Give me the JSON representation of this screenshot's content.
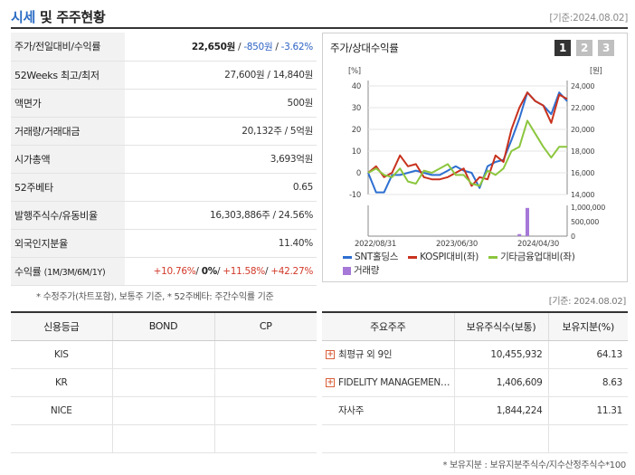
{
  "header": {
    "title_a": "시세",
    "title_b": " 및 주주현황",
    "date": "[기준:2024.08.02]"
  },
  "stock": {
    "rows": [
      {
        "label": "주가/전일대비/수익률",
        "price": "22,650원",
        "change": "-850원",
        "rate": "-3.62%"
      },
      {
        "label": "52Weeks 최고/최저",
        "value": "27,600원 / 14,840원"
      },
      {
        "label": "액면가",
        "value": "500원"
      },
      {
        "label": "거래량/거래대금",
        "value": "20,132주 / 5억원"
      },
      {
        "label": "시가총액",
        "value": "3,693억원"
      },
      {
        "label": "52주베타",
        "value": "0.65"
      },
      {
        "label": "발행주식수/유동비율",
        "value": "16,303,886주 / 24.56%"
      },
      {
        "label": "외국인지분율",
        "value": "11.40%"
      }
    ],
    "returns": {
      "label": "수익률",
      "label_sub": "(1M/3M/6M/1Y)",
      "r1": "+10.76%",
      "r2": "0%",
      "r3": "+11.58%",
      "r4": "+42.27%",
      "sep": "/"
    }
  },
  "notes": {
    "left": "* 수정주가(차트포함), 보통주 기준, * 52주베타: 주간수익률 기준",
    "right": "[기준: 2024.08.02]",
    "bottom": "* 보유지분 : 보유지분주식수/지수산정주식수*100"
  },
  "chart_panel": {
    "title": "주가/상대수익률",
    "tabs": [
      "1",
      "2",
      "3"
    ]
  },
  "chart_data": {
    "type": "line",
    "left_unit": "[%]",
    "right_unit": "[원]",
    "left_ticks": [
      "40",
      "30",
      "20",
      "10",
      "0",
      "-10"
    ],
    "right_ticks": [
      "24,000",
      "22,000",
      "20,000",
      "18,000",
      "16,000",
      "14,000"
    ],
    "volume_ticks": [
      "1,000,000",
      "500,000",
      "0"
    ],
    "x_labels": [
      "2022/08/31",
      "2023/06/30",
      "2024/04/30"
    ],
    "ylim_left": [
      -10,
      40
    ],
    "series": [
      {
        "name": "SNT홀딩스",
        "color": "#2e6fd0",
        "values": [
          0,
          -9,
          -9,
          -1,
          -1,
          0,
          1,
          0,
          -1,
          -1,
          1,
          3,
          1,
          0,
          -7,
          3,
          5,
          6,
          15,
          25,
          37,
          33,
          31,
          27,
          37,
          33
        ]
      },
      {
        "name": "KOSPI대비(좌)",
        "color": "#c8321e",
        "values": [
          0,
          3,
          -2,
          0,
          8,
          3,
          4,
          -2,
          -3,
          -3,
          -2,
          0,
          2,
          -6,
          -2,
          -3,
          8,
          5,
          20,
          30,
          37,
          33,
          31,
          23,
          36,
          34
        ]
      },
      {
        "name": "기타금융업대비(좌)",
        "color": "#8cc63e",
        "values": [
          0,
          2,
          -1,
          -2,
          2,
          -4,
          -5,
          1,
          0,
          2,
          4,
          -1,
          -1,
          -5,
          -6,
          1,
          -1,
          2,
          10,
          12,
          24,
          18,
          12,
          7,
          12,
          12
        ]
      },
      {
        "name": "거래량",
        "color": "#a678d8",
        "type": "bar",
        "bars": [
          {
            "index": 20,
            "value": 1100000
          },
          {
            "index": 19,
            "value": 80000
          }
        ]
      }
    ]
  },
  "credit": {
    "headers": [
      "신용등급",
      "BOND",
      "CP"
    ],
    "rows": [
      {
        "agency": "KIS",
        "bond": "",
        "cp": ""
      },
      {
        "agency": "KR",
        "bond": "",
        "cp": ""
      },
      {
        "agency": "NICE",
        "bond": "",
        "cp": ""
      },
      {
        "agency": "",
        "bond": "",
        "cp": ""
      }
    ]
  },
  "holders": {
    "headers": [
      "주요주주",
      "보유주식수(보통)",
      "보유지분(%)"
    ],
    "rows": [
      {
        "name": "최평규 외 9인",
        "shares": "10,455,932",
        "pct": "64.13",
        "expandable": true
      },
      {
        "name": "FIDELITY MANAGEMENT & RESEARCH",
        "shares": "1,406,609",
        "pct": "8.63",
        "expandable": true
      },
      {
        "name": "자사주",
        "shares": "1,844,224",
        "pct": "11.31",
        "expandable": false
      },
      {
        "name": "",
        "shares": "",
        "pct": "",
        "expandable": false
      }
    ]
  }
}
